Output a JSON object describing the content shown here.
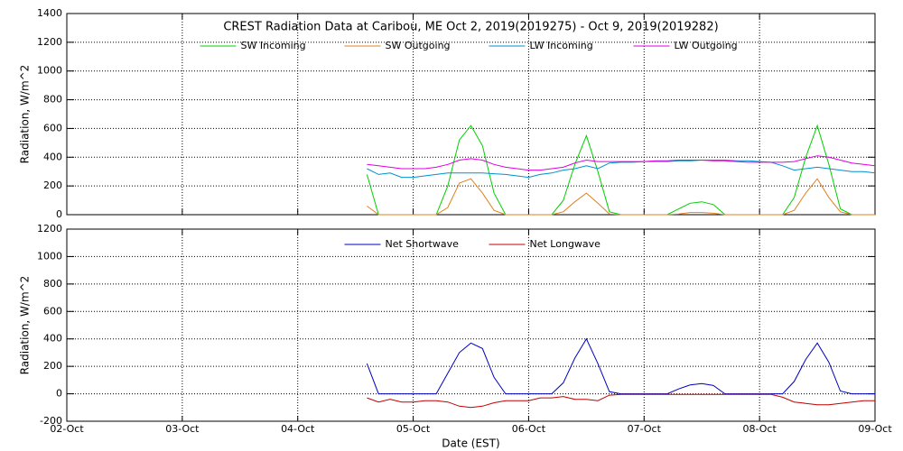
{
  "chart_data": [
    {
      "type": "line",
      "title": "CREST Radiation Data at Caribou, ME   Oct  2, 2019(2019275) - Oct  9, 2019(2019282)",
      "y_label": "Radiation, W/m^2",
      "x": [
        2.6,
        2.7,
        2.8,
        2.9,
        3.0,
        3.1,
        3.2,
        3.3,
        3.4,
        3.5,
        3.6,
        3.7,
        3.8,
        3.9,
        4.0,
        4.1,
        4.2,
        4.3,
        4.4,
        4.5,
        4.6,
        4.7,
        4.8,
        4.9,
        5.0,
        5.1,
        5.2,
        5.3,
        5.4,
        5.5,
        5.6,
        5.7,
        5.8,
        5.9,
        6.0,
        6.1,
        6.2,
        6.3,
        6.4,
        6.5,
        6.6,
        6.7,
        6.8,
        6.9,
        7.0
      ],
      "series": [
        {
          "name": "SW Incoming",
          "color": "#00d000",
          "values": [
            280,
            0,
            0,
            0,
            0,
            0,
            0,
            200,
            520,
            620,
            480,
            150,
            0,
            0,
            0,
            0,
            0,
            100,
            350,
            550,
            300,
            20,
            0,
            0,
            0,
            0,
            0,
            40,
            80,
            90,
            70,
            0,
            0,
            0,
            0,
            0,
            0,
            120,
            400,
            620,
            350,
            40,
            0,
            0,
            0
          ]
        },
        {
          "name": "SW Outgoing",
          "color": "#e08020",
          "values": [
            60,
            0,
            0,
            0,
            0,
            0,
            0,
            50,
            220,
            250,
            150,
            30,
            0,
            0,
            0,
            0,
            0,
            20,
            90,
            150,
            80,
            5,
            0,
            0,
            0,
            0,
            0,
            5,
            15,
            15,
            10,
            0,
            0,
            0,
            0,
            0,
            0,
            30,
            150,
            250,
            120,
            20,
            0,
            0,
            0
          ]
        },
        {
          "name": "LW Incoming",
          "color": "#0090d0",
          "values": [
            320,
            280,
            290,
            260,
            260,
            270,
            280,
            290,
            290,
            290,
            290,
            285,
            280,
            270,
            260,
            280,
            290,
            310,
            320,
            340,
            320,
            360,
            365,
            365,
            370,
            370,
            370,
            375,
            375,
            380,
            380,
            380,
            375,
            375,
            370,
            365,
            340,
            310,
            320,
            330,
            320,
            310,
            300,
            300,
            290
          ]
        },
        {
          "name": "LW Outgoing",
          "color": "#e000e0",
          "values": [
            350,
            340,
            330,
            320,
            320,
            320,
            330,
            350,
            380,
            390,
            380,
            350,
            330,
            320,
            310,
            310,
            320,
            330,
            360,
            380,
            370,
            370,
            370,
            370,
            370,
            375,
            375,
            380,
            380,
            380,
            375,
            375,
            370,
            365,
            365,
            365,
            365,
            370,
            390,
            410,
            400,
            380,
            360,
            350,
            340
          ]
        }
      ],
      "xlim": [
        0,
        7
      ],
      "xticks": [
        0,
        1,
        2,
        3,
        4,
        5,
        6,
        7
      ],
      "ylim": [
        0,
        1400
      ],
      "yticks": [
        0,
        200,
        400,
        600,
        800,
        1000,
        1200,
        1400
      ],
      "grid": true
    },
    {
      "type": "line",
      "y_label": "Radiation, W/m^2",
      "x_label": "Date (EST)",
      "x": [
        2.6,
        2.7,
        2.8,
        2.9,
        3.0,
        3.1,
        3.2,
        3.3,
        3.4,
        3.5,
        3.6,
        3.7,
        3.8,
        3.9,
        4.0,
        4.1,
        4.2,
        4.3,
        4.4,
        4.5,
        4.6,
        4.7,
        4.8,
        4.9,
        5.0,
        5.1,
        5.2,
        5.3,
        5.4,
        5.5,
        5.6,
        5.7,
        5.8,
        5.9,
        6.0,
        6.1,
        6.2,
        6.3,
        6.4,
        6.5,
        6.6,
        6.7,
        6.8,
        6.9,
        7.0
      ],
      "series": [
        {
          "name": "Net Shortwave",
          "color": "#0000c0",
          "values": [
            220,
            0,
            0,
            0,
            0,
            0,
            0,
            150,
            300,
            370,
            330,
            120,
            0,
            0,
            0,
            0,
            0,
            80,
            260,
            400,
            220,
            15,
            0,
            0,
            0,
            0,
            0,
            35,
            65,
            75,
            60,
            0,
            0,
            0,
            0,
            0,
            0,
            90,
            250,
            370,
            230,
            20,
            0,
            0,
            0
          ]
        },
        {
          "name": "Net Longwave",
          "color": "#c00000",
          "values": [
            -30,
            -60,
            -40,
            -60,
            -60,
            -50,
            -50,
            -60,
            -90,
            -100,
            -90,
            -65,
            -50,
            -50,
            -50,
            -30,
            -30,
            -20,
            -40,
            -40,
            -50,
            -10,
            -5,
            -5,
            -5,
            -5,
            -5,
            -5,
            -5,
            -5,
            -5,
            -5,
            -5,
            -5,
            -5,
            -5,
            -25,
            -60,
            -70,
            -80,
            -80,
            -70,
            -60,
            -50,
            -50
          ]
        }
      ],
      "xlim": [
        0,
        7
      ],
      "xticks": [
        {
          "value": 0,
          "label": "02-Oct"
        },
        {
          "value": 1,
          "label": "03-Oct"
        },
        {
          "value": 2,
          "label": "04-Oct"
        },
        {
          "value": 3,
          "label": "05-Oct"
        },
        {
          "value": 4,
          "label": "06-Oct"
        },
        {
          "value": 5,
          "label": "07-Oct"
        },
        {
          "value": 6,
          "label": "08-Oct"
        },
        {
          "value": 7,
          "label": "09-Oct"
        }
      ],
      "ylim": [
        -200,
        1200
      ],
      "yticks": [
        -200,
        0,
        200,
        400,
        600,
        800,
        1000,
        1200
      ],
      "grid": true
    }
  ]
}
